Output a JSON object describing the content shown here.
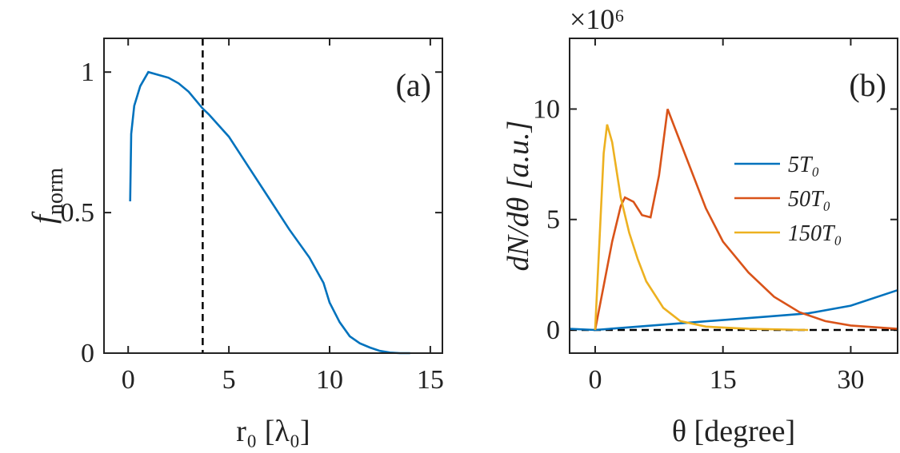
{
  "chart_data": [
    {
      "type": "line",
      "annotation": "(a)",
      "xlabel": "r₀ [λ₀]",
      "ylabel": {
        "main": "f",
        "sub": "norm"
      },
      "xlim": [
        -1.2,
        15.6
      ],
      "ylim": [
        0,
        1.12
      ],
      "xticks": [
        0,
        5,
        10,
        15
      ],
      "yticks": [
        0,
        0.5,
        1
      ],
      "vline": 3.7,
      "series": [
        {
          "color": "#0072bd",
          "x": [
            0.1,
            0.15,
            0.3,
            0.6,
            1.0,
            1.5,
            2,
            2.5,
            3,
            3.7,
            4,
            5,
            6,
            7,
            8,
            9,
            9.7,
            10,
            10.5,
            11,
            11.5,
            12,
            12.5,
            13,
            13.5,
            14
          ],
          "values": [
            0.54,
            0.78,
            0.88,
            0.95,
            1.0,
            0.99,
            0.98,
            0.96,
            0.93,
            0.87,
            0.85,
            0.77,
            0.66,
            0.55,
            0.44,
            0.34,
            0.25,
            0.18,
            0.11,
            0.06,
            0.035,
            0.02,
            0.008,
            0.002,
            0,
            0
          ]
        }
      ]
    },
    {
      "type": "line",
      "annotation": "(b)",
      "xlabel": "θ [degree]",
      "ylabel": "dN/dθ [a.u.]",
      "multiplier": "×10⁶",
      "xlim": [
        -3,
        35.5
      ],
      "ylim": [
        -1.05,
        13.2
      ],
      "xticks": [
        0,
        15,
        30
      ],
      "yticks": [
        0,
        5,
        10
      ],
      "hline": 0,
      "series": [
        {
          "name": "5T₀",
          "color": "#0072bd",
          "x": [
            -3,
            0,
            10,
            20,
            25,
            30,
            35.5
          ],
          "values": [
            0.05,
            0,
            0.3,
            0.6,
            0.75,
            1.1,
            1.8
          ]
        },
        {
          "name": "50T₀",
          "color": "#d95319",
          "x": [
            0,
            1,
            2,
            3,
            3.5,
            4.5,
            5.5,
            6.5,
            7.5,
            8.5,
            9.5,
            11,
            13,
            15,
            18,
            21,
            24,
            27,
            30,
            35.5
          ],
          "values": [
            0,
            2,
            4,
            5.6,
            6,
            5.8,
            5.2,
            5.1,
            7,
            10,
            9,
            7.5,
            5.5,
            4,
            2.6,
            1.5,
            0.8,
            0.4,
            0.2,
            0.05
          ]
        },
        {
          "name": "150T₀",
          "color": "#edb120",
          "x": [
            0,
            0.5,
            1,
            1.4,
            2,
            3,
            4,
            5,
            6,
            8,
            10,
            13,
            18,
            25
          ],
          "values": [
            0,
            4,
            8,
            9.3,
            8.5,
            6,
            4.4,
            3.2,
            2.2,
            1,
            0.4,
            0.15,
            0.05,
            0
          ]
        }
      ]
    }
  ]
}
